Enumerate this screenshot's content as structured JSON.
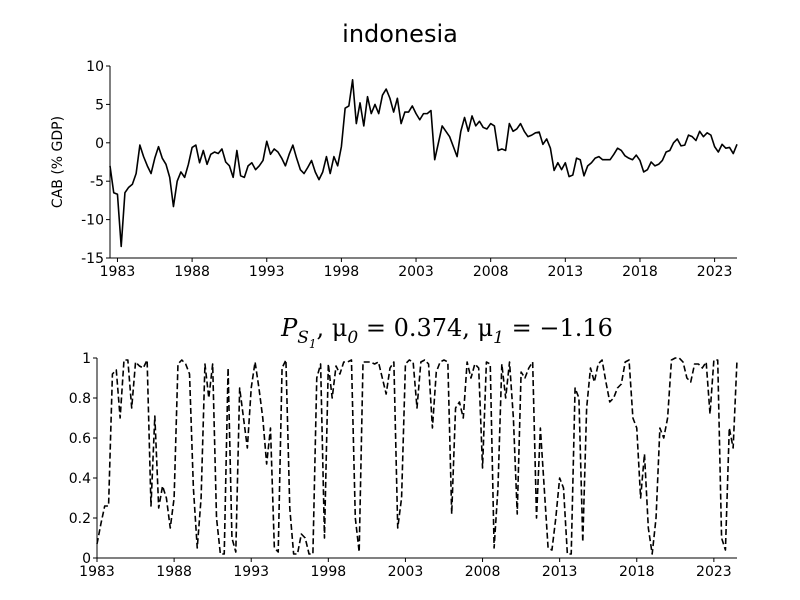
{
  "chart_data": [
    {
      "type": "line",
      "title": "indonesia",
      "ylabel": "CAB (% GDP)",
      "xlim": [
        1982.5,
        2024.5
      ],
      "ylim": [
        -15,
        10
      ],
      "xticks": [
        1983,
        1988,
        1993,
        1998,
        2003,
        2008,
        2013,
        2018,
        2023
      ],
      "yticks": [
        -15,
        -10,
        -5,
        0,
        5,
        10
      ],
      "x": [
        1982.5,
        1982.75,
        1983,
        1983.25,
        1983.5,
        1983.75,
        1984,
        1984.25,
        1984.5,
        1984.75,
        1985,
        1985.25,
        1985.5,
        1985.75,
        1986,
        1986.25,
        1986.5,
        1986.75,
        1987,
        1987.25,
        1987.5,
        1987.75,
        1988,
        1988.25,
        1988.5,
        1988.75,
        1989,
        1989.25,
        1989.5,
        1989.75,
        1990,
        1990.25,
        1990.5,
        1990.75,
        1991,
        1991.25,
        1991.5,
        1991.75,
        1992,
        1992.25,
        1992.5,
        1992.75,
        1993,
        1993.25,
        1993.5,
        1993.75,
        1994,
        1994.25,
        1994.5,
        1994.75,
        1995,
        1995.25,
        1995.5,
        1995.75,
        1996,
        1996.25,
        1996.5,
        1996.75,
        1997,
        1997.25,
        1997.5,
        1997.75,
        1998,
        1998.25,
        1998.5,
        1998.75,
        1999,
        1999.25,
        1999.5,
        1999.75,
        2000,
        2000.25,
        2000.5,
        2000.75,
        2001,
        2001.25,
        2001.5,
        2001.75,
        2002,
        2002.25,
        2002.5,
        2002.75,
        2003,
        2003.25,
        2003.5,
        2003.75,
        2004,
        2004.25,
        2004.5,
        2004.75,
        2005,
        2005.25,
        2005.5,
        2005.75,
        2006,
        2006.25,
        2006.5,
        2006.75,
        2007,
        2007.25,
        2007.5,
        2007.75,
        2008,
        2008.25,
        2008.5,
        2008.75,
        2009,
        2009.25,
        2009.5,
        2009.75,
        2010,
        2010.25,
        2010.5,
        2010.75,
        2011,
        2011.25,
        2011.5,
        2011.75,
        2012,
        2012.25,
        2012.5,
        2012.75,
        2013,
        2013.25,
        2013.5,
        2013.75,
        2014,
        2014.25,
        2014.5,
        2014.75,
        2015,
        2015.25,
        2015.5,
        2015.75,
        2016,
        2016.25,
        2016.5,
        2016.75,
        2017,
        2017.25,
        2017.5,
        2017.75,
        2018,
        2018.25,
        2018.5,
        2018.75,
        2019,
        2019.25,
        2019.5,
        2019.75,
        2020,
        2020.25,
        2020.5,
        2020.75,
        2021,
        2021.25,
        2021.5,
        2021.75,
        2022,
        2022.25,
        2022.5,
        2022.75,
        2023,
        2023.25,
        2023.5,
        2023.75,
        2024,
        2024.25,
        2024.5
      ],
      "series": [
        {
          "color": "#000000",
          "linestyle": "solid",
          "values": [
            -3,
            -6.5,
            -6.7,
            -13.5,
            -6.5,
            -5.8,
            -5.4,
            -4,
            -0.3,
            -1.8,
            -3,
            -4,
            -2,
            -0.5,
            -2,
            -2.8,
            -4.5,
            -8.3,
            -5,
            -3.8,
            -4.5,
            -2.8,
            -0.6,
            -0.3,
            -2.6,
            -1,
            -2.8,
            -1.5,
            -1.2,
            -1.4,
            -0.8,
            -2.5,
            -3,
            -4.5,
            -1,
            -4.3,
            -4.5,
            -3,
            -2.6,
            -3.5,
            -3,
            -2.3,
            0.2,
            -1.5,
            -0.8,
            -1.2,
            -2,
            -3,
            -1.5,
            -0.3,
            -2,
            -3.5,
            -4,
            -3.2,
            -2.3,
            -3.8,
            -4.8,
            -3.8,
            -1.8,
            -4,
            -1.8,
            -3,
            -0.5,
            4.5,
            4.8,
            8.2,
            2.5,
            5.2,
            2.2,
            6,
            3.8,
            5,
            3.8,
            6.2,
            7,
            5.8,
            4,
            5.8,
            2.5,
            4,
            4,
            4.8,
            3.8,
            3,
            3.8,
            3.8,
            4.2,
            -2.2,
            0,
            2.2,
            1.5,
            0.8,
            -0.5,
            -1.8,
            1.5,
            3.3,
            1.5,
            3.5,
            2.2,
            2.8,
            2,
            1.8,
            2.5,
            2.2,
            -1,
            -0.8,
            -1,
            2.5,
            1.5,
            1.8,
            2.5,
            1.5,
            0.8,
            1,
            1.3,
            1.4,
            -0.2,
            0.5,
            -0.7,
            -3.6,
            -2.6,
            -3.5,
            -2.6,
            -4.4,
            -4.2,
            -2,
            -2.2,
            -4.3,
            -3,
            -2.6,
            -2,
            -1.8,
            -2.2,
            -2.2,
            -2.2,
            -1.5,
            -0.7,
            -1,
            -1.7,
            -2,
            -2.2,
            -1.6,
            -2.3,
            -3.8,
            -3.5,
            -2.5,
            -3,
            -2.8,
            -2.3,
            -1.2,
            -1,
            0,
            0.5,
            -0.4,
            -0.3,
            1,
            0.8,
            0.3,
            1.5,
            0.8,
            1.3,
            1,
            -0.5,
            -1.2,
            -0.2,
            -0.7,
            -0.6,
            -1.4,
            -0.2
          ]
        }
      ]
    },
    {
      "type": "line",
      "title": [
        "P",
        "S",
        "1",
        ", μ",
        "0",
        " = 0.374, μ",
        "1",
        " = −1.16"
      ],
      "xlim": [
        1983,
        2024.5
      ],
      "ylim": [
        0,
        1
      ],
      "xticks": [
        1983,
        1988,
        1993,
        1998,
        2003,
        2008,
        2013,
        2018,
        2023
      ],
      "yticks": [
        0,
        0.2,
        0.4,
        0.6,
        0.8,
        1
      ],
      "x": [
        1983,
        1983.25,
        1983.5,
        1983.75,
        1984,
        1984.25,
        1984.5,
        1984.75,
        1985,
        1985.25,
        1985.5,
        1985.75,
        1986,
        1986.25,
        1986.5,
        1986.75,
        1987,
        1987.25,
        1987.5,
        1987.75,
        1988,
        1988.25,
        1988.5,
        1988.75,
        1989,
        1989.25,
        1989.5,
        1989.75,
        1990,
        1990.25,
        1990.5,
        1990.75,
        1991,
        1991.25,
        1991.5,
        1991.75,
        1992,
        1992.25,
        1992.5,
        1992.75,
        1993,
        1993.25,
        1993.5,
        1993.75,
        1994,
        1994.25,
        1994.5,
        1994.75,
        1995,
        1995.25,
        1995.5,
        1995.75,
        1996,
        1996.25,
        1996.5,
        1996.75,
        1997,
        1997.25,
        1997.5,
        1997.75,
        1998,
        1998.25,
        1998.5,
        1998.75,
        1999,
        1999.25,
        1999.5,
        1999.75,
        2000,
        2000.25,
        2000.5,
        2000.75,
        2001,
        2001.25,
        2001.5,
        2001.75,
        2002,
        2002.25,
        2002.5,
        2002.75,
        2003,
        2003.25,
        2003.5,
        2003.75,
        2004,
        2004.25,
        2004.5,
        2004.75,
        2005,
        2005.25,
        2005.5,
        2005.75,
        2006,
        2006.25,
        2006.5,
        2006.75,
        2007,
        2007.25,
        2007.5,
        2007.75,
        2008,
        2008.25,
        2008.5,
        2008.75,
        2009,
        2009.25,
        2009.5,
        2009.75,
        2010,
        2010.25,
        2010.5,
        2010.75,
        2011,
        2011.25,
        2011.5,
        2011.75,
        2012,
        2012.25,
        2012.5,
        2012.75,
        2013,
        2013.25,
        2013.5,
        2013.75,
        2014,
        2014.25,
        2014.5,
        2014.75,
        2015,
        2015.25,
        2015.5,
        2015.75,
        2016,
        2016.25,
        2016.5,
        2016.75,
        2017,
        2017.25,
        2017.5,
        2017.75,
        2018,
        2018.25,
        2018.5,
        2018.75,
        2019,
        2019.25,
        2019.5,
        2019.75,
        2020,
        2020.25,
        2020.5,
        2020.75,
        2021,
        2021.25,
        2021.5,
        2021.75,
        2022,
        2022.25,
        2022.5,
        2022.75,
        2023,
        2023.25,
        2023.5,
        2023.75,
        2024,
        2024.25,
        2024.5
      ],
      "series": [
        {
          "color": "#000000",
          "linestyle": "dashed",
          "values": [
            0.07,
            0.17,
            0.26,
            0.26,
            0.92,
            0.94,
            0.7,
            0.99,
            0.99,
            0.75,
            0.98,
            0.96,
            0.95,
            0.99,
            0.26,
            0.71,
            0.25,
            0.36,
            0.3,
            0.15,
            0.3,
            0.97,
            0.99,
            0.97,
            0.92,
            0.35,
            0.05,
            0.3,
            0.97,
            0.8,
            0.97,
            0.2,
            0.02,
            0.02,
            0.95,
            0.1,
            0.03,
            0.85,
            0.7,
            0.55,
            0.85,
            0.98,
            0.85,
            0.7,
            0.47,
            0.65,
            0.05,
            0.03,
            0.95,
            0.99,
            0.25,
            0.02,
            0.02,
            0.12,
            0.1,
            0.02,
            0.02,
            0.9,
            0.97,
            0.1,
            0.97,
            0.8,
            0.96,
            0.92,
            0.98,
            0.98,
            0.99,
            0.2,
            0.03,
            0.98,
            0.98,
            0.98,
            0.97,
            0.98,
            0.9,
            0.82,
            0.95,
            0.98,
            0.15,
            0.3,
            0.97,
            0.99,
            0.98,
            0.75,
            0.98,
            0.99,
            0.97,
            0.65,
            0.93,
            0.98,
            0.99,
            0.98,
            0.22,
            0.75,
            0.78,
            0.7,
            0.98,
            0.9,
            0.97,
            0.95,
            0.45,
            0.98,
            0.97,
            0.05,
            0.35,
            0.97,
            0.8,
            0.98,
            0.7,
            0.22,
            0.93,
            0.9,
            0.95,
            0.98,
            0.2,
            0.65,
            0.35,
            0.05,
            0.04,
            0.2,
            0.4,
            0.35,
            0.02,
            0.02,
            0.85,
            0.8,
            0.08,
            0.75,
            0.95,
            0.88,
            0.97,
            0.99,
            0.88,
            0.78,
            0.8,
            0.85,
            0.87,
            0.98,
            0.99,
            0.7,
            0.65,
            0.3,
            0.52,
            0.15,
            0.02,
            0.2,
            0.65,
            0.6,
            0.7,
            0.99,
            1,
            1,
            0.98,
            0.9,
            0.88,
            0.97,
            0.97,
            0.95,
            0.98,
            0.72,
            0.99,
            0.99,
            0.1,
            0.04,
            0.65,
            0.55,
            0.99
          ]
        }
      ]
    }
  ]
}
